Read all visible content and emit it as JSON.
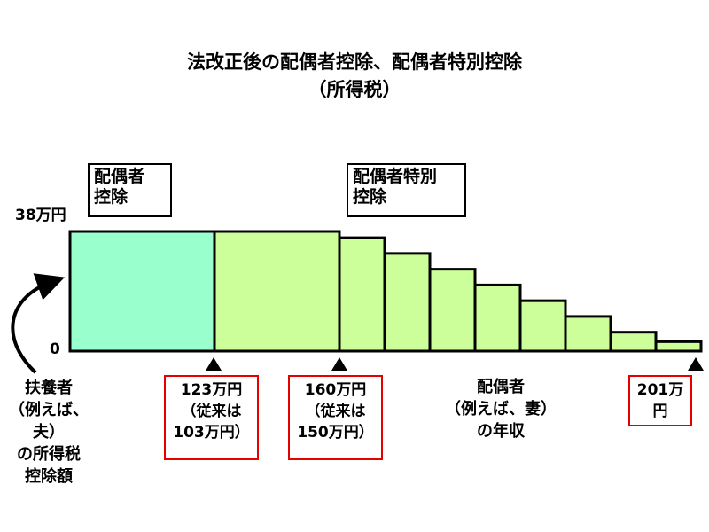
{
  "title": {
    "line1": "法改正後の配偶者控除、配偶者特別控除",
    "line2": "（所得税）"
  },
  "labels": {
    "spousal_deduction": [
      "配偶者",
      "控除"
    ],
    "special_spousal_deduction": [
      "配偶者特別",
      "控除"
    ]
  },
  "axis": {
    "y_top": "38万円",
    "y_zero": "0",
    "y_caption": [
      "扶養者",
      "（例えば、夫）",
      "の所得税",
      "控除額"
    ],
    "x_caption": [
      "配偶者",
      "（例えば、妻）",
      "の年収"
    ]
  },
  "thresholds": [
    {
      "lines": [
        "123万円",
        "（従来は",
        "103万円）"
      ]
    },
    {
      "lines": [
        "160万円",
        "（従来は",
        "150万円）"
      ]
    },
    {
      "lines": [
        "201万",
        "円"
      ]
    }
  ],
  "chart_data": {
    "type": "bar",
    "ylim": [
      0,
      38
    ],
    "steps": [
      {
        "value": 38,
        "category": "spousal"
      },
      {
        "value": 38,
        "category": "special"
      },
      {
        "value": 36,
        "category": "special"
      },
      {
        "value": 31,
        "category": "special"
      },
      {
        "value": 26,
        "category": "special"
      },
      {
        "value": 21,
        "category": "special"
      },
      {
        "value": 16,
        "category": "special"
      },
      {
        "value": 11,
        "category": "special"
      },
      {
        "value": 6,
        "category": "special"
      },
      {
        "value": 3,
        "category": "special"
      }
    ]
  },
  "colors": {
    "spousal": "#99ffcc",
    "special": "#ccff99",
    "border": "#000000",
    "highlight": "#e60000"
  }
}
